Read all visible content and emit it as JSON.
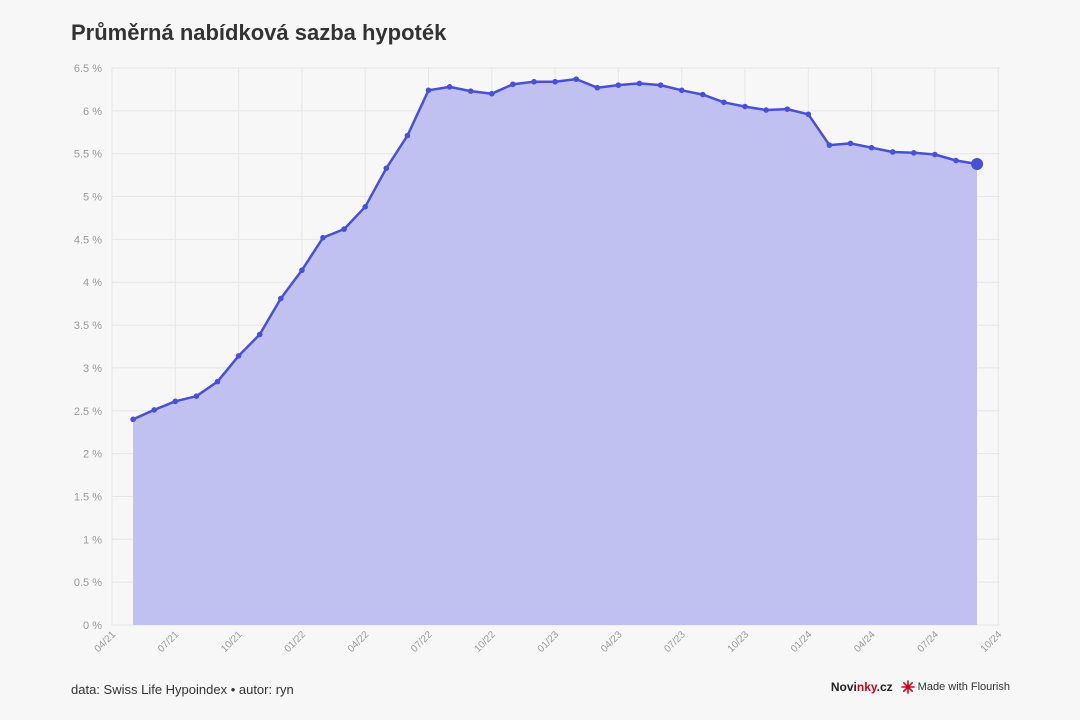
{
  "title": "Průměrná nabídková sazba hypoték",
  "footer": {
    "source": "data: Swiss Life Hypoindex • autor: ryn",
    "brand_a": "Novi",
    "brand_b": "nky",
    "brand_c": ".cz",
    "made_with": "Made with Flourish"
  },
  "colors": {
    "line": "#4a4fd8",
    "area": "#c0c1f0",
    "grid": "#e6e6e6"
  },
  "chart_data": {
    "type": "area",
    "x_ticks": [
      "04/21",
      "07/21",
      "10/21",
      "01/22",
      "04/22",
      "07/22",
      "10/22",
      "01/23",
      "04/23",
      "07/23",
      "10/23",
      "01/24",
      "04/24",
      "07/24",
      "10/24"
    ],
    "y_ticks": [
      "0 %",
      "0.5 %",
      "1 %",
      "1.5 %",
      "2 %",
      "2.5 %",
      "3 %",
      "3.5 %",
      "4 %",
      "4.5 %",
      "5 %",
      "5.5 %",
      "6 %",
      "6.5 %"
    ],
    "ylim": [
      0,
      6.5
    ],
    "x_start": "2021-04",
    "series": [
      {
        "values": [
          2.4,
          2.51,
          2.61,
          2.67,
          2.84,
          3.14,
          3.39,
          3.81,
          4.14,
          4.52,
          4.62,
          4.88,
          5.33,
          5.71,
          6.24,
          6.28,
          6.23,
          6.2,
          6.31,
          6.34,
          6.34,
          6.37,
          6.27,
          6.3,
          6.32,
          6.3,
          6.24,
          6.19,
          6.1,
          6.05,
          6.01,
          6.02,
          5.96,
          5.6,
          5.62,
          5.57,
          5.52,
          5.51,
          5.49,
          5.42,
          5.38
        ]
      }
    ]
  }
}
